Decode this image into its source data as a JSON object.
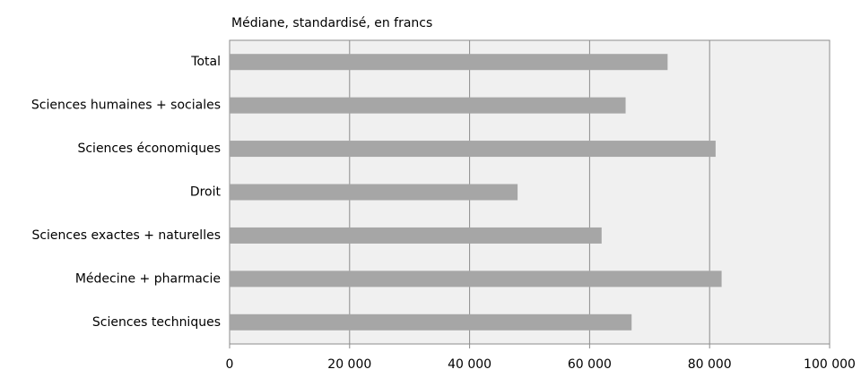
{
  "chart_data": {
    "type": "hbar",
    "title": "Médiane, standardisé, en francs",
    "categories": [
      "Total",
      "Sciences humaines + sociales",
      "Sciences économiques",
      "Droit",
      "Sciences exactes + naturelles",
      "Médecine + pharmacie",
      "Sciences techniques"
    ],
    "values": [
      73000,
      66000,
      81000,
      48000,
      62000,
      82000,
      67000
    ],
    "color": "#a6a6a6",
    "xlim": [
      0,
      100000
    ],
    "xticks": [
      0,
      {
        "value": 20000,
        "label": "20 000"
      },
      {
        "value": 40000,
        "label": "40 000"
      },
      {
        "value": 60000,
        "label": "60 000"
      },
      {
        "value": 80000,
        "label": "80 000"
      },
      {
        "value": 100000,
        "label": "100 000"
      }
    ],
    "grid": true
  }
}
